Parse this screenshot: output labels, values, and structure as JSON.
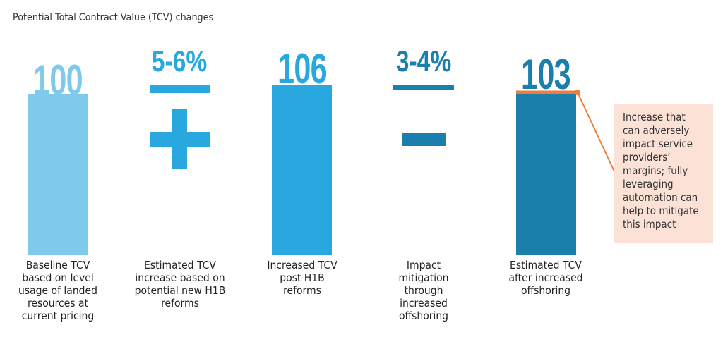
{
  "chart_data": {
    "type": "bar",
    "title": "Potential Total Contract Value (TCV) changes",
    "categories": [
      "Baseline TCV based on level usage of landed resources at current pricing",
      "Estimated TCV increase based on potential new H1B reforms",
      "Increased TCV post H1B reforms",
      "Impact mitigation through increased offshoring",
      "Estimated TCV after increased offshoring"
    ],
    "values": [
      100,
      null,
      106,
      null,
      103
    ],
    "value_labels": [
      "100",
      "5-6%",
      "106",
      "3-4%",
      "103"
    ],
    "operators": [
      "",
      "plus",
      "",
      "minus",
      ""
    ],
    "colors": [
      "#7fc9ec",
      "#29a8df",
      "#29a8df",
      "#1a7faa",
      "#1a7faa"
    ],
    "highlight_color": "#f07c3a",
    "annotation": "Increase that can adversely impact service providers’ margins; fully leveraging automation can help to mitigate this impact",
    "grid": false
  }
}
